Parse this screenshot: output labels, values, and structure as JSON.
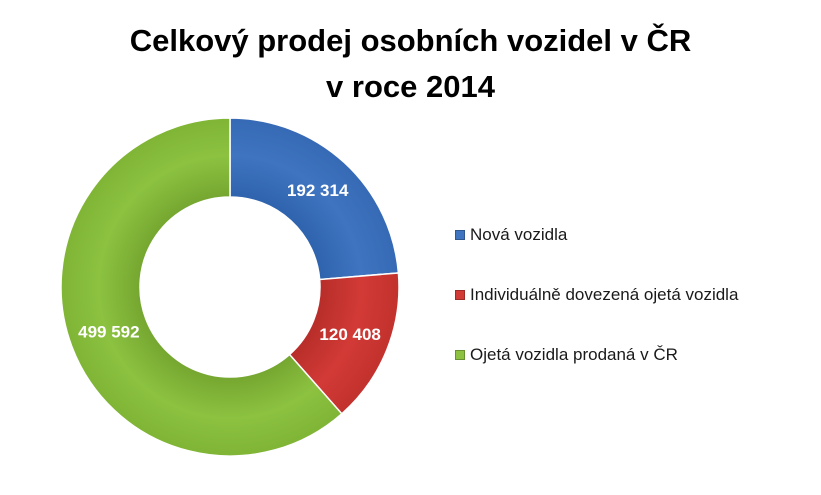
{
  "title_lines": [
    "Celkový prodej osobních vozidel v ČR",
    "v roce 2014"
  ],
  "chart_data": {
    "type": "pie",
    "style": "donut",
    "title": "Celkový prodej osobních vozidel v ČR v roce 2014",
    "legend_position": "right",
    "slices": [
      {
        "label": "Nová vozidla",
        "value": 192314,
        "value_label": "192 314",
        "color": "#3f74c0"
      },
      {
        "label": "Individuálně dovezená ojetá vozidla",
        "value": 120408,
        "value_label": "120 408",
        "color": "#d23a36"
      },
      {
        "label": "Ojetá vozidla prodaná v ČR",
        "value": 499592,
        "value_label": "499 592",
        "color": "#8cc240"
      }
    ]
  }
}
